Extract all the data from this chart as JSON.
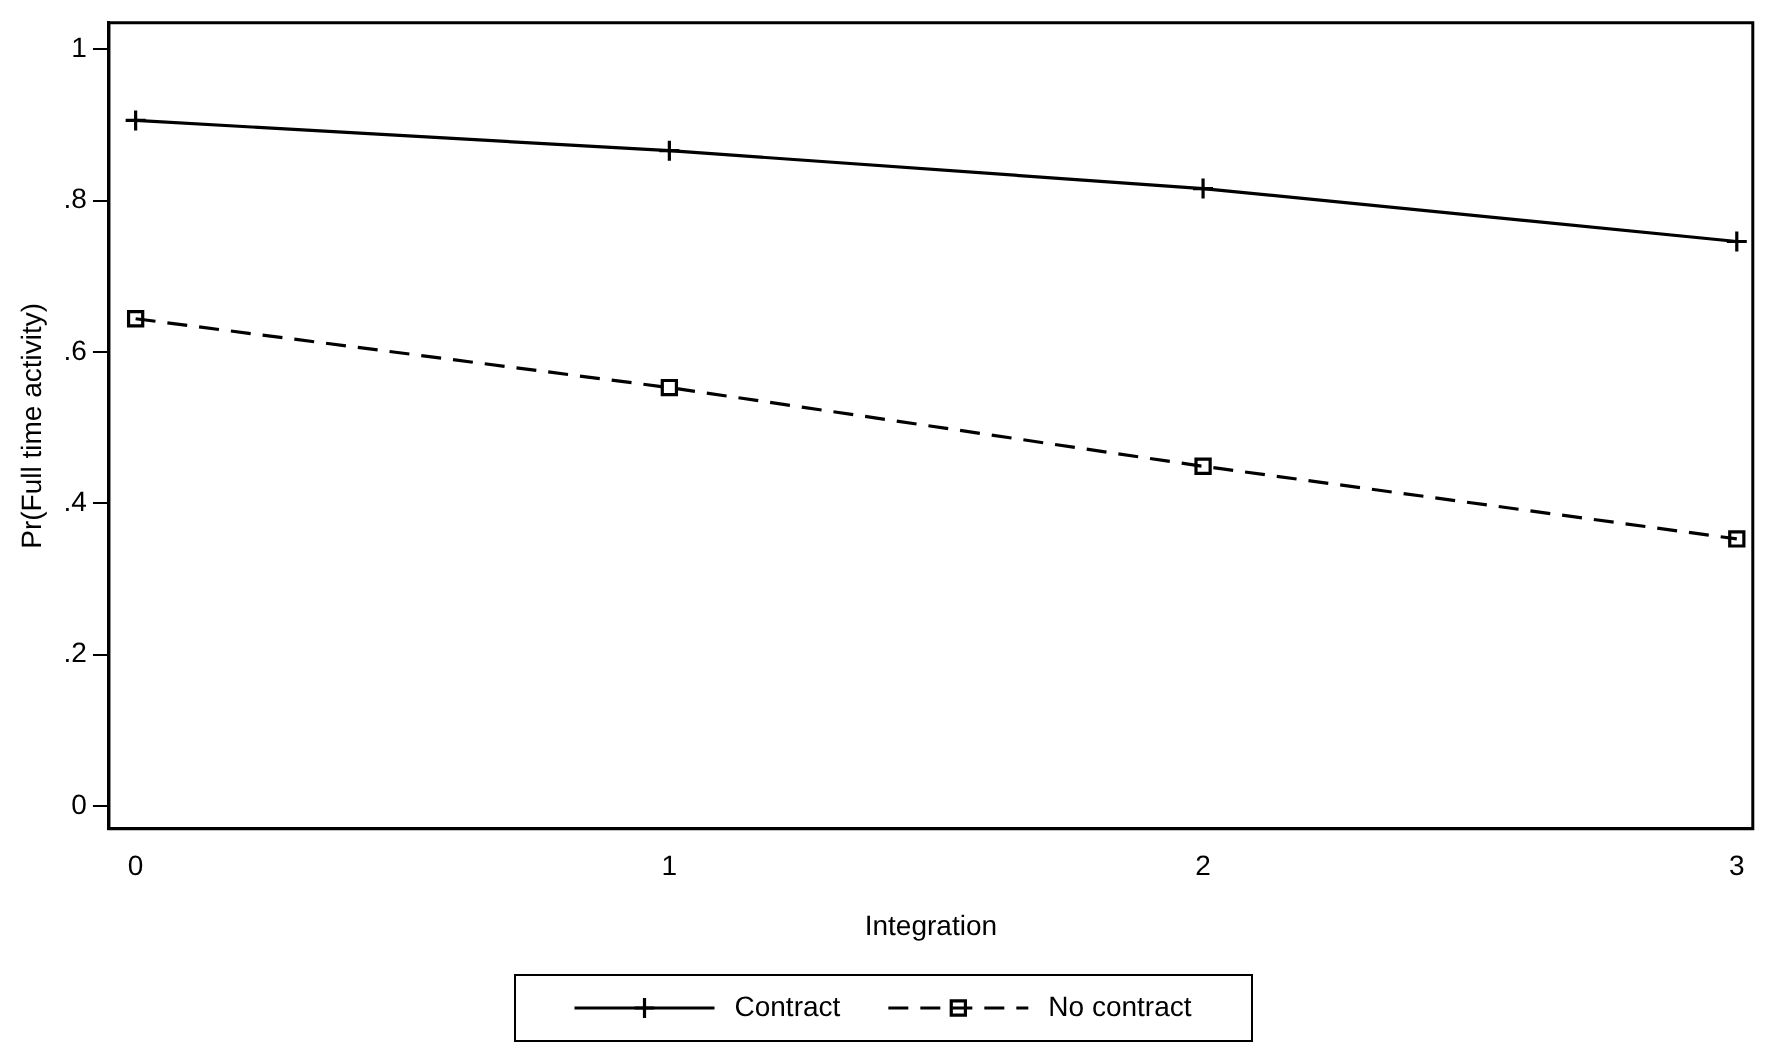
{
  "chart_data": {
    "type": "line",
    "xlabel": "Integration",
    "ylabel": "Pr(Full time activity)",
    "x": [
      0,
      1,
      2,
      3
    ],
    "series": [
      {
        "name": "Contract",
        "color": "#000000",
        "values": [
          0.906,
          0.866,
          0.816,
          0.746
        ],
        "marker": "cross",
        "line_style": "solid"
      },
      {
        "name": "No contract",
        "color": "#000000",
        "values": [
          0.644,
          0.553,
          0.449,
          0.353
        ],
        "marker": "square",
        "line_style": "dashed"
      }
    ],
    "xlim": [
      -0.05,
      3.03
    ],
    "xticks": [
      0,
      1,
      2,
      3
    ],
    "ylim": [
      -0.03,
      1.035
    ],
    "yticks": [
      0,
      {
        "value": 0.2,
        "label": ".2"
      },
      {
        "value": 0.4,
        "label": ".4"
      },
      {
        "value": 0.6,
        "label": ".6"
      },
      {
        "value": 0.8,
        "label": ".8"
      },
      1
    ],
    "grid": false,
    "legend": "bottom"
  }
}
